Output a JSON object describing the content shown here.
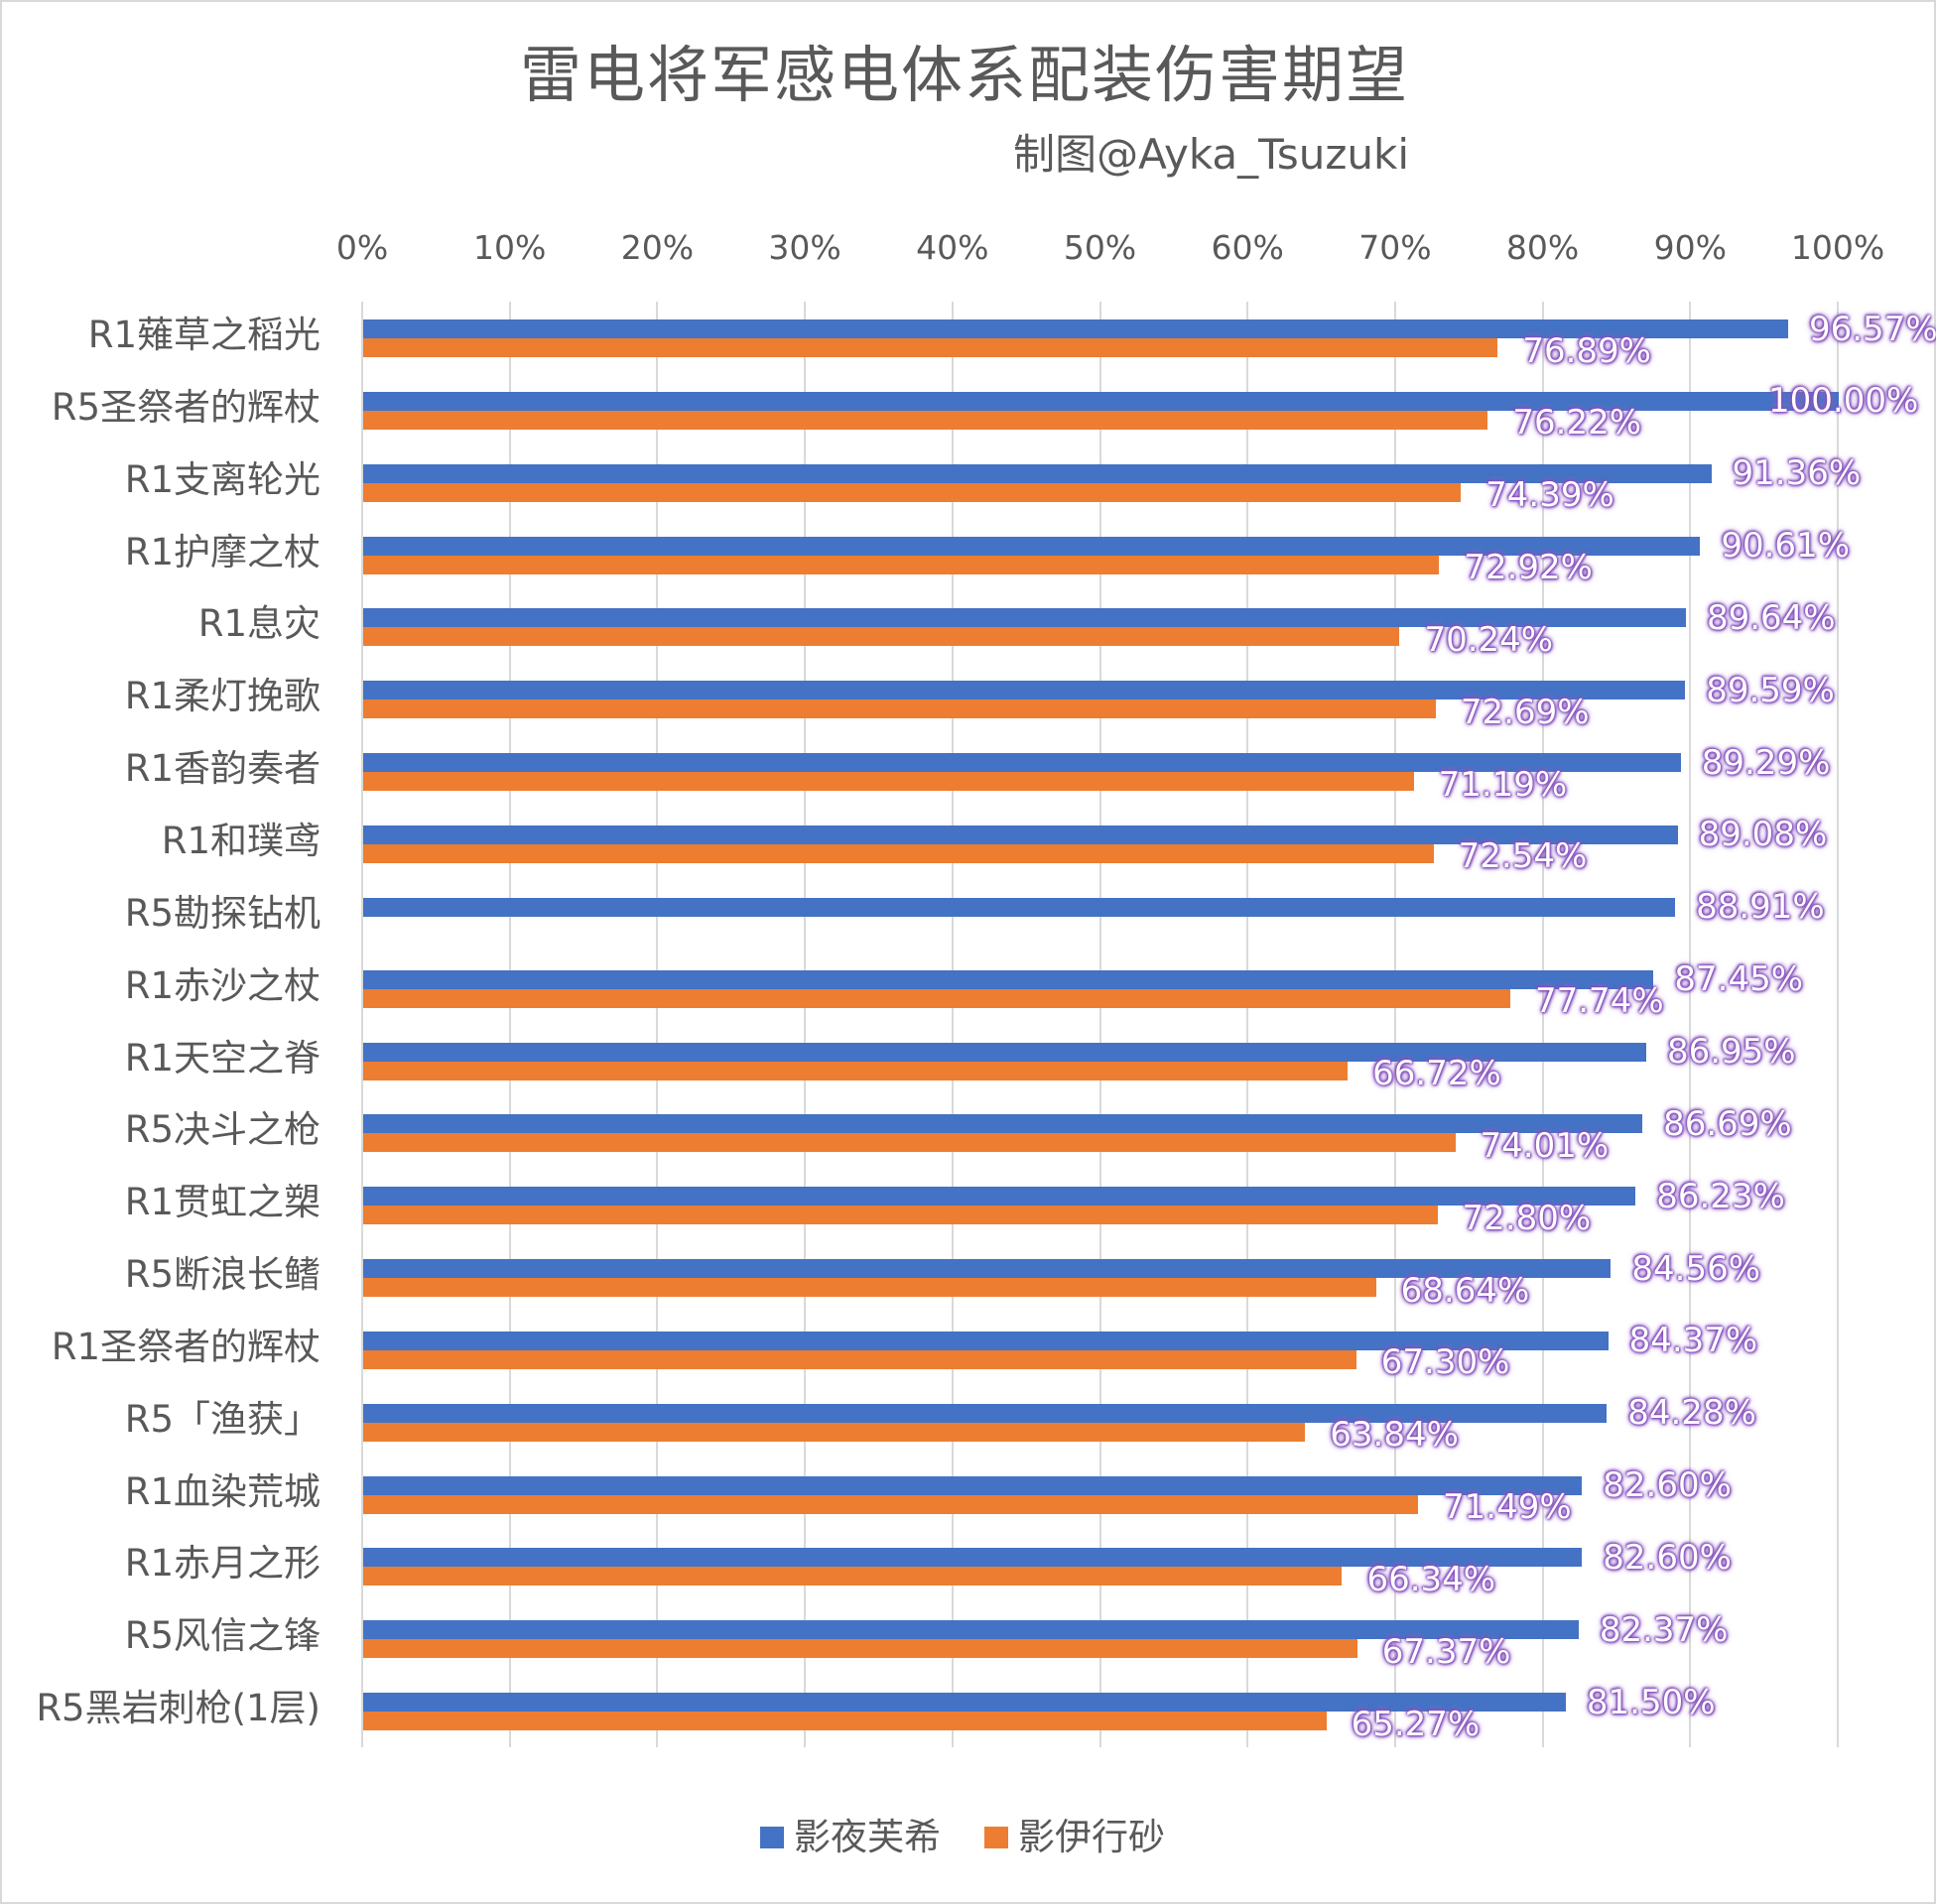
{
  "chart_data": {
    "type": "bar",
    "orientation": "horizontal",
    "title": "雷电将军感电体系配装伤害期望",
    "subtitle": "制图@Ayka_Tsuzuki",
    "xlabel": "",
    "ylabel": "",
    "xlim": [
      0,
      1
    ],
    "x_ticks": [
      "0%",
      "10%",
      "20%",
      "30%",
      "40%",
      "50%",
      "60%",
      "70%",
      "80%",
      "90%",
      "100%"
    ],
    "grid": true,
    "legend_position": "bottom",
    "categories": [
      "R1薙草之稻光",
      "R5圣祭者的辉杖",
      "R1支离轮光",
      "R1护摩之杖",
      "R1息灾",
      "R1柔灯挽歌",
      "R1香韵奏者",
      "R1和璞鸢",
      "R5勘探钻机",
      "R1赤沙之杖",
      "R1天空之脊",
      "R5决斗之枪",
      "R1贯虹之槊",
      "R5断浪长鳍",
      "R1圣祭者的辉杖",
      "R5「渔获」",
      "R1血染荒城",
      "R1赤月之形",
      "R5风信之锋",
      "R5黑岩刺枪(1层)"
    ],
    "series": [
      {
        "name": "影夜芙希",
        "color": "#4472c4",
        "values": [
          0.9657,
          1.0,
          0.9136,
          0.9061,
          0.8964,
          0.8959,
          0.8929,
          0.8908,
          0.8891,
          0.8745,
          0.8695,
          0.8669,
          0.8623,
          0.8456,
          0.8437,
          0.8428,
          0.826,
          0.826,
          0.8237,
          0.815
        ],
        "labels": [
          "96.57%",
          "100.00%",
          "91.36%",
          "90.61%",
          "89.64%",
          "89.59%",
          "89.29%",
          "89.08%",
          "88.91%",
          "87.45%",
          "86.95%",
          "86.69%",
          "86.23%",
          "84.56%",
          "84.37%",
          "84.28%",
          "82.60%",
          "82.60%",
          "82.37%",
          "81.50%"
        ]
      },
      {
        "name": "影伊行砂",
        "color": "#ed7d31",
        "values": [
          0.7689,
          0.7622,
          0.7439,
          0.7292,
          0.7024,
          0.7269,
          0.7119,
          0.7254,
          null,
          0.7774,
          0.6672,
          0.7401,
          0.728,
          0.6864,
          0.673,
          0.6384,
          0.7149,
          0.6634,
          0.6737,
          0.6527
        ],
        "labels": [
          "76.89%",
          "76.22%",
          "74.39%",
          "72.92%",
          "70.24%",
          "72.69%",
          "71.19%",
          "72.54%",
          null,
          "77.74%",
          "66.72%",
          "74.01%",
          "72.80%",
          "68.64%",
          "67.30%",
          "63.84%",
          "71.49%",
          "66.34%",
          "67.37%",
          "65.27%"
        ]
      }
    ]
  },
  "header": {
    "title": "雷电将军感电体系配装伤害期望",
    "subtitle": "制图@Ayka_Tsuzuki"
  },
  "legend": {
    "items": [
      {
        "label": "影夜芙希",
        "color": "#4472c4"
      },
      {
        "label": "影伊行砂",
        "color": "#ed7d31"
      }
    ]
  }
}
